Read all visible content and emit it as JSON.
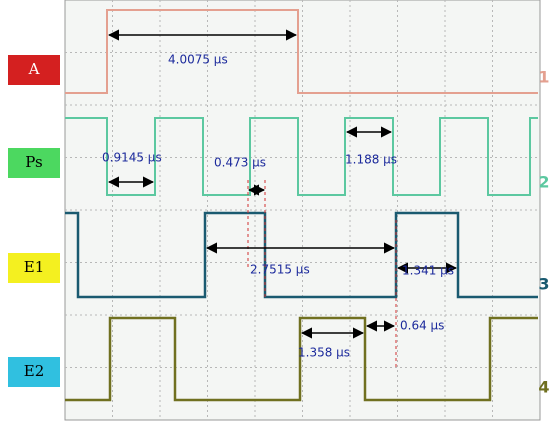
{
  "channels": [
    {
      "label": "A",
      "number": "1"
    },
    {
      "label": "Ps",
      "number": "2"
    },
    {
      "label": "E1",
      "number": "3"
    },
    {
      "label": "E2",
      "number": "4"
    }
  ],
  "measurements": [
    "4.0075 μs",
    "0.9145 μs",
    "0.473 μs",
    "1.188 μs",
    "2.7515 μs",
    "1.341 μs",
    "0.64 μs",
    "1.358 μs"
  ]
}
